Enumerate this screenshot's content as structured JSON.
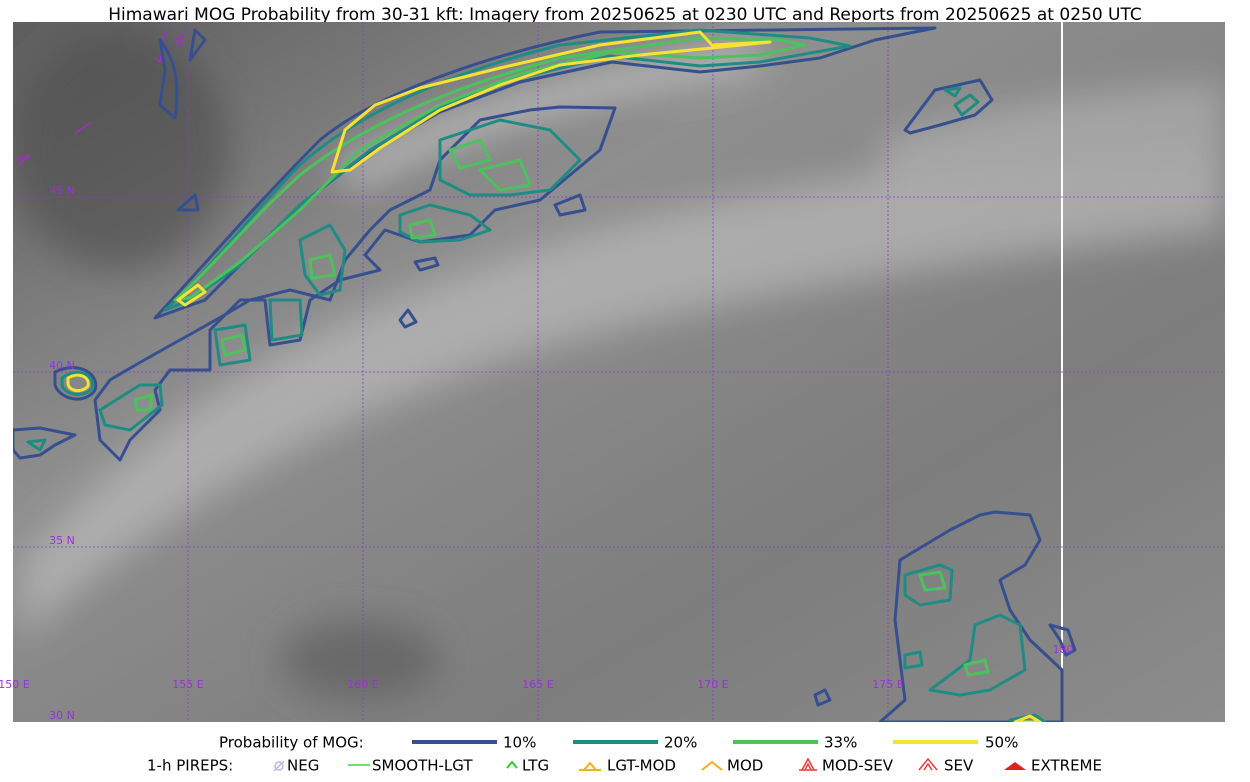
{
  "header": {
    "title": "Himawari MOG Probability from 30-31 kft: Imagery from 20250625 at 0230 UTC and Reports from 20250625 at 0250 UTC"
  },
  "map": {
    "lon_labels": [
      "150 E",
      "155 E",
      "160 E",
      "165 E",
      "170 E",
      "175 E",
      "180"
    ],
    "lat_labels": [
      "45 N",
      "40 N",
      "35 N",
      "30 N"
    ]
  },
  "legend": {
    "probability": {
      "title": "Probability of MOG:",
      "items": [
        "10%",
        "20%",
        "33%",
        "50%"
      ]
    },
    "pireps": {
      "title": "1-h PIREPS:",
      "items": [
        "NEG",
        "SMOOTH-LGT",
        "LTG",
        "LGT-MOD",
        "MOD",
        "MOD-SEV",
        "SEV",
        "EXTREME"
      ]
    }
  }
}
